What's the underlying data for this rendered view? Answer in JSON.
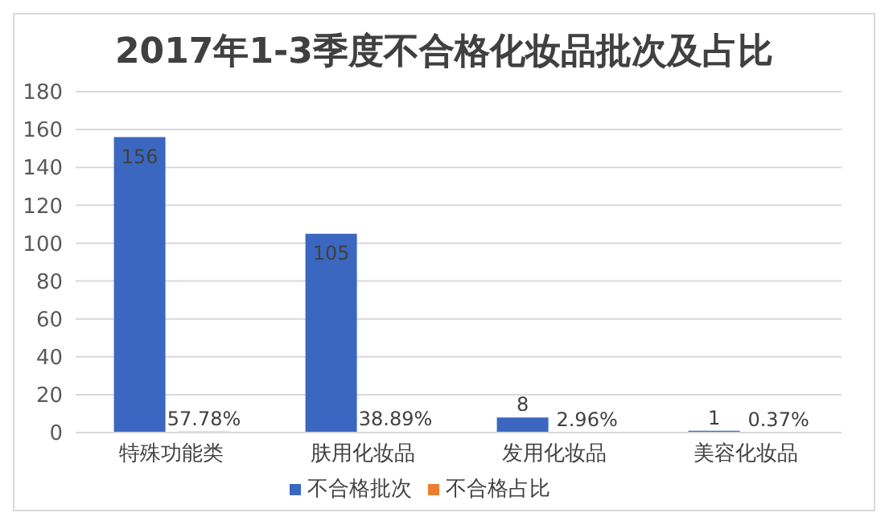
{
  "chart_data": {
    "type": "bar",
    "title": "2017年1-3季度不合格化妆品批次及占比",
    "categories": [
      "特殊功能类",
      "肤用化妆品",
      "发用化妆品",
      "美容化妆品"
    ],
    "series": [
      {
        "name": "不合格批次",
        "color": "#3b67c0",
        "values": [
          156,
          105,
          8,
          1
        ],
        "value_labels": [
          "156",
          "105",
          "8",
          "1"
        ]
      },
      {
        "name": "不合格占比",
        "color": "#ed7d31",
        "values": [
          0.5778,
          0.3889,
          0.0296,
          0.0037
        ],
        "value_labels": [
          "57.78%",
          "38.89%",
          "2.96%",
          "0.37%"
        ]
      }
    ],
    "ylim": [
      0,
      180
    ],
    "yticks": [
      0,
      20,
      40,
      60,
      80,
      100,
      120,
      140,
      160,
      180
    ],
    "grid": "y",
    "legend": "bottom"
  }
}
